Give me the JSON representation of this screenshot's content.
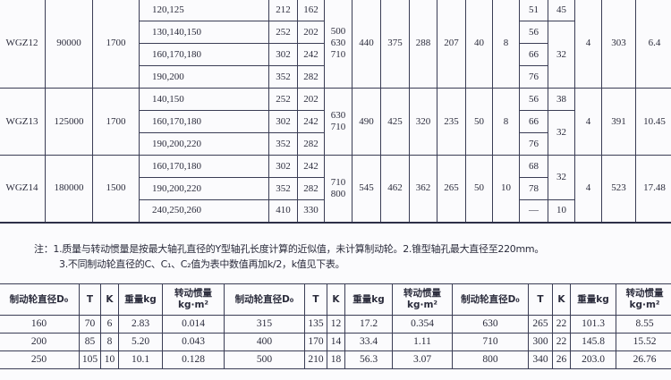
{
  "spec_table": {
    "groups": [
      {
        "model": "WGZ12",
        "torque": "90000",
        "speed": "1700",
        "rows": [
          {
            "bore": "120,125",
            "l1": "212",
            "l": "162"
          },
          {
            "bore": "130,140,150",
            "l1": "252",
            "l": "202"
          },
          {
            "bore": "160,170,180",
            "l1": "302",
            "l": "242"
          },
          {
            "bore": "190,200",
            "l1": "352",
            "l": "282"
          }
        ],
        "d0": "500\n630\n710",
        "vals": [
          "440",
          "375",
          "288",
          "207",
          "40",
          "8"
        ],
        "sub_a": [
          "51",
          "56",
          "66",
          "76"
        ],
        "sub_b": [
          "45",
          "32",
          null,
          null
        ],
        "tail": [
          "4",
          "303",
          "6.4"
        ]
      },
      {
        "model": "WGZ13",
        "torque": "125000",
        "speed": "1700",
        "rows": [
          {
            "bore": "140,150",
            "l1": "252",
            "l": "202"
          },
          {
            "bore": "160,170,180",
            "l1": "302",
            "l": "242"
          },
          {
            "bore": "190,200,220",
            "l1": "352",
            "l": "282"
          }
        ],
        "d0": "630\n710",
        "vals": [
          "490",
          "425",
          "320",
          "235",
          "50",
          "8"
        ],
        "sub_a": [
          "56",
          "66",
          "76"
        ],
        "sub_b": [
          "38",
          "32",
          null
        ],
        "tail": [
          "4",
          "391",
          "10.45"
        ]
      },
      {
        "model": "WGZ14",
        "torque": "180000",
        "speed": "1500",
        "rows": [
          {
            "bore": "160,170,180",
            "l1": "302",
            "l": "242"
          },
          {
            "bore": "190,200,220",
            "l1": "352",
            "l": "282"
          },
          {
            "bore": "240,250,260",
            "l1": "410",
            "l": "330"
          }
        ],
        "d0": "710\n800",
        "vals": [
          "545",
          "462",
          "362",
          "265",
          "50",
          "10"
        ],
        "sub_a": [
          "68",
          "78",
          "—"
        ],
        "sub_b": [
          "32",
          null,
          "10"
        ],
        "tail": [
          "4",
          "523",
          "17.48"
        ]
      }
    ]
  },
  "notes": {
    "line1": "注：1.质量与转动惯量是按最大轴孔直径的Y型轴孔长度计算的近似值，未计算制动轮。2.锥型轴孔最大直径至220mm。",
    "line2": "3.不同制动轮直径的C、C₁、C₂值为表中数值再加k/2，k值见下表。"
  },
  "brake_table": {
    "headers": [
      "制动轮直径D₀",
      "T",
      "K",
      "重量kg",
      "转动惯量\nkg·m²",
      "制动轮直径D₀",
      "T",
      "K",
      "重量kg",
      "转动惯量\nkg·m²",
      "制动轮直径D₀",
      "T",
      "K",
      "重量kg",
      "转动惯量\nkg·m²"
    ],
    "rows": [
      [
        "160",
        "70",
        "6",
        "2.83",
        "0.014",
        "315",
        "135",
        "12",
        "17.2",
        "0.354",
        "630",
        "265",
        "22",
        "101.3",
        "8.55"
      ],
      [
        "200",
        "85",
        "8",
        "5.20",
        "0.043",
        "400",
        "170",
        "14",
        "33.4",
        "1.11",
        "710",
        "300",
        "22",
        "145.8",
        "15.52"
      ],
      [
        "250",
        "105",
        "10",
        "10.1",
        "0.128",
        "500",
        "210",
        "18",
        "56.3",
        "3.07",
        "800",
        "340",
        "26",
        "203.0",
        "26.76"
      ]
    ]
  }
}
